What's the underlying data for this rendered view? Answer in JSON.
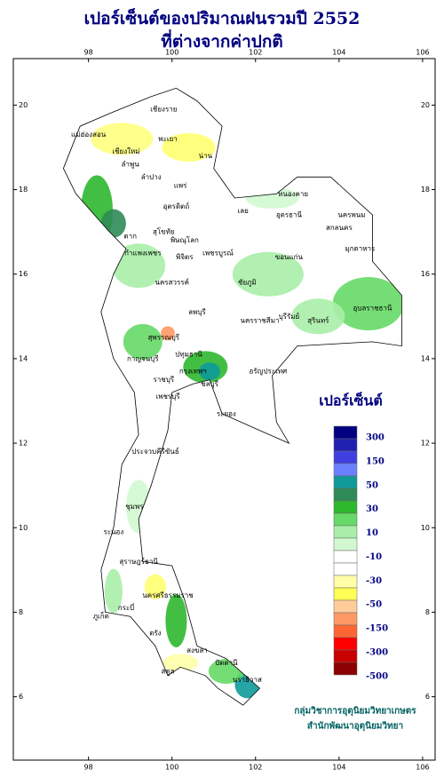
{
  "title": [
    "เปอร์เซ็นต์ของปริมาณฝนรวมปี 2552",
    "ที่ต่างจากค่าปกติ"
  ],
  "map": {
    "xlim": [
      96.2,
      106.3
    ],
    "ylim": [
      4.5,
      21.1
    ],
    "xticks": [
      98,
      100,
      102,
      104,
      106
    ],
    "yticks": [
      6,
      8,
      10,
      12,
      14,
      16,
      18,
      20
    ],
    "provinces": [
      "เชียงราย",
      "แม่ฮ่องสอน",
      "เชียงใหม่",
      "ลำพูน",
      "พะเยา",
      "น่าน",
      "ลำปาง",
      "แพร่",
      "อุตรดิตถ์",
      "ตาก",
      "สุโขทัย",
      "พิษณุโลก",
      "กำแพงเพชร",
      "พิจิตร",
      "เพชรบูรณ์",
      "เลย",
      "หนองคาย",
      "อุดรธานี",
      "สกลนคร",
      "นครพนม",
      "มุกดาหาร",
      "ขอนแก่น",
      "นครสวรรค์",
      "ชัยภูมิ",
      "ลพบุรี",
      "นครราชสีมา",
      "อุบลราชธานี",
      "สุรินทร์",
      "บุรีรัมย์",
      "สุพรรณบุรี",
      "กาญจนบุรี",
      "ปทุมธานี",
      "กรุงเทพฯ",
      "ราชบุรี",
      "ชลบุรี",
      "อรัญประเทศ",
      "เพชรบุรี",
      "ระยอง",
      "ประจวบคีรีขันธ์",
      "ชุมพร",
      "ระนอง",
      "สุราษฎร์ธานี",
      "นครศรีธรรมราช",
      "กระบี่",
      "ภูเก็ต",
      "ตรัง",
      "สงขลา",
      "สตูล",
      "ปัตตานี",
      "นราธิวาส"
    ]
  },
  "legend": {
    "title": "เปอร์เซ็นต์",
    "colors": [
      "#000080",
      "#2020b0",
      "#4040e0",
      "#6a80ff",
      "#109a9a",
      "#2e8b57",
      "#2eb82e",
      "#66d966",
      "#a8eea8",
      "#d2f8d2",
      "#ffffff",
      "#ffffff",
      "#ffffa8",
      "#ffff55",
      "#ffcc99",
      "#ff9966",
      "#ff6633",
      "#ff0000",
      "#c80000",
      "#8b0000"
    ],
    "labels": [
      "300",
      "150",
      "50",
      "30",
      "10",
      "-10",
      "-30",
      "-50",
      "-150",
      "-300",
      "-500"
    ]
  },
  "credit": [
    "กลุ่มวิชาการอุตุนิยมวิทยาเกษตร",
    "สำนักพัฒนาอุตุนิยมวิทยา"
  ]
}
